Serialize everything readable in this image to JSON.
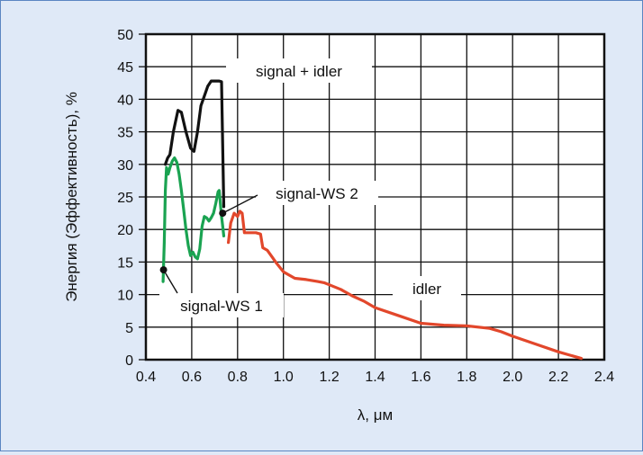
{
  "chart_data": {
    "type": "line",
    "xlabel": "λ, μм",
    "ylabel": "Энергия (Эффективность), %",
    "xlim": [
      0.4,
      2.4
    ],
    "ylim": [
      0,
      50
    ],
    "x_ticks": [
      "0.4",
      "0.6",
      "0.8",
      "1.0",
      "1.2",
      "1.4",
      "1.6",
      "1.8",
      "2.0",
      "2.2",
      "2.4"
    ],
    "y_ticks": [
      "0",
      "5",
      "10",
      "15",
      "20",
      "25",
      "30",
      "35",
      "40",
      "45",
      "50"
    ],
    "grid": true,
    "series": [
      {
        "name": "signal + idler",
        "color": "#111111",
        "x": [
          0.485,
          0.495,
          0.505,
          0.52,
          0.54,
          0.555,
          0.575,
          0.595,
          0.61,
          0.625,
          0.64,
          0.655,
          0.67,
          0.685,
          0.7,
          0.71,
          0.72,
          0.73,
          0.74
        ],
        "y": [
          30.0,
          31.0,
          31.5,
          35.0,
          38.3,
          38.0,
          35.0,
          32.5,
          32.0,
          35.0,
          39.0,
          40.5,
          42.0,
          42.8,
          42.8,
          42.8,
          42.8,
          42.7,
          23.5
        ]
      },
      {
        "name": "signal-WS 1",
        "color": "#1aa351",
        "x": [
          0.475,
          0.48,
          0.485,
          0.49,
          0.497,
          0.505,
          0.515,
          0.525,
          0.535,
          0.545,
          0.555,
          0.565,
          0.575,
          0.585,
          0.595,
          0.605
        ],
        "y": [
          12.0,
          18.0,
          26.0,
          29.5,
          28.5,
          29.5,
          30.5,
          31.0,
          30.3,
          28.5,
          26.0,
          23.0,
          20.0,
          17.5,
          16.0,
          16.5
        ]
      },
      {
        "name": "signal-WS 2",
        "color": "#1aa351",
        "x": [
          0.605,
          0.615,
          0.625,
          0.635,
          0.645,
          0.655,
          0.665,
          0.675,
          0.685,
          0.695,
          0.705,
          0.715,
          0.72,
          0.725,
          0.73,
          0.735,
          0.74
        ],
        "y": [
          16.5,
          15.8,
          15.5,
          17.0,
          20.5,
          22.0,
          21.8,
          21.3,
          21.8,
          22.5,
          24.0,
          25.8,
          26.0,
          24.0,
          22.0,
          20.5,
          19.0
        ]
      },
      {
        "name": "idler",
        "color": "#e2472b",
        "x": [
          0.76,
          0.77,
          0.785,
          0.8,
          0.81,
          0.82,
          0.83,
          0.845,
          0.86,
          0.88,
          0.9,
          0.91,
          0.93,
          0.95,
          0.97,
          1.0,
          1.05,
          1.1,
          1.15,
          1.18,
          1.2,
          1.25,
          1.3,
          1.35,
          1.4,
          1.5,
          1.6,
          1.7,
          1.8,
          1.9,
          1.95,
          2.0,
          2.1,
          2.2,
          2.3
        ],
        "y": [
          18.0,
          21.0,
          22.5,
          22.0,
          22.8,
          22.5,
          19.5,
          19.5,
          19.5,
          19.5,
          19.3,
          17.2,
          16.8,
          15.8,
          14.8,
          13.5,
          12.5,
          12.3,
          12.0,
          11.8,
          11.5,
          10.8,
          9.8,
          9.0,
          8.0,
          6.8,
          5.6,
          5.3,
          5.2,
          4.8,
          4.3,
          3.6,
          2.4,
          1.2,
          0.2
        ]
      }
    ],
    "annotations": [
      {
        "text": "signal + idler",
        "point": null
      },
      {
        "text": "signal-WS 2",
        "point": [
          0.735,
          22.5
        ]
      },
      {
        "text": "signal-WS 1",
        "point": [
          0.477,
          13.8
        ]
      },
      {
        "text": "idler",
        "point": null
      }
    ]
  }
}
